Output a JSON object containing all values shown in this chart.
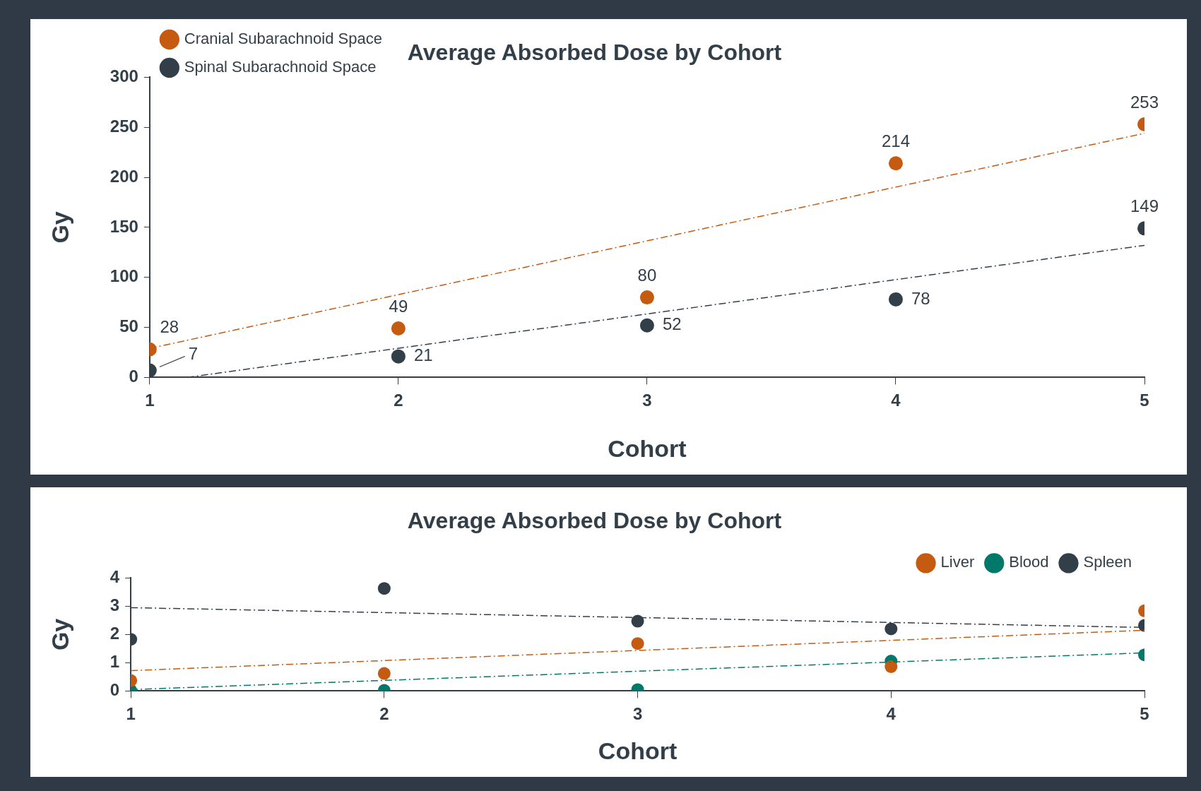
{
  "chart_data": [
    {
      "type": "scatter",
      "title": "Average Absorbed Dose by Cohort",
      "xlabel": "Cohort",
      "ylabel": "Gy",
      "x": [
        1,
        2,
        3,
        4,
        5
      ],
      "xlim": [
        1,
        5
      ],
      "xticks": [
        1,
        2,
        3,
        4,
        5
      ],
      "ylim": [
        0,
        300
      ],
      "yticks": [
        0,
        50,
        100,
        150,
        200,
        250,
        300
      ],
      "grid": false,
      "legend": "top left",
      "series": [
        {
          "name": "Cranial Subarachnoid Space",
          "color": "#c55a11",
          "marker": "circle",
          "values": [
            28,
            49,
            80,
            214,
            253
          ],
          "value_labels": [
            "28",
            "49",
            "80",
            "214",
            "253"
          ]
        },
        {
          "name": "Spinal Subarachnoid Space",
          "color": "#333f48",
          "marker": "circle",
          "values": [
            7,
            21,
            52,
            78,
            149
          ],
          "value_labels": [
            "7",
            "21",
            "52",
            "78",
            "149"
          ]
        },
        {
          "type": "line",
          "color": "#c55a11",
          "marker": "none",
          "x": [
            1,
            5
          ],
          "values": [
            29,
            244
          ],
          "line_style": "dashed"
        },
        {
          "type": "line",
          "color": "#333f48",
          "marker": "none",
          "x": [
            1.15,
            5
          ],
          "values": [
            0,
            132
          ],
          "line_style": "dashed"
        }
      ]
    },
    {
      "type": "scatter",
      "title": "Average Absorbed Dose by Cohort",
      "xlabel": "Cohort",
      "ylabel": "Gy",
      "x": [
        1,
        2,
        3,
        4,
        5
      ],
      "xlim": [
        1,
        5
      ],
      "xticks": [
        1,
        2,
        3,
        4,
        5
      ],
      "ylim": [
        0,
        4
      ],
      "yticks": [
        0,
        1,
        2,
        3,
        4
      ],
      "grid": false,
      "legend": "top right",
      "series": [
        {
          "name": "Liver",
          "color": "#c55a11",
          "marker": "circle",
          "values": [
            0.37,
            0.62,
            1.68,
            0.86,
            2.84
          ]
        },
        {
          "name": "Blood",
          "color": "#00796b",
          "marker": "circle",
          "values": [
            0.02,
            0.02,
            0.05,
            1.06,
            1.28
          ]
        },
        {
          "name": "Spleen",
          "color": "#333f48",
          "marker": "circle",
          "values": [
            1.83,
            3.63,
            2.47,
            2.2,
            2.32
          ]
        },
        {
          "type": "line",
          "color": "#333f48",
          "marker": "none",
          "x": [
            1,
            5
          ],
          "values": [
            2.95,
            2.25
          ],
          "line_style": "dashed"
        },
        {
          "type": "line",
          "color": "#c55a11",
          "marker": "none",
          "x": [
            1,
            5
          ],
          "values": [
            0.72,
            2.15
          ],
          "line_style": "dashed"
        },
        {
          "type": "line",
          "color": "#00796b",
          "marker": "none",
          "x": [
            1,
            5
          ],
          "values": [
            0.05,
            1.35
          ],
          "line_style": "dashed"
        }
      ]
    }
  ]
}
